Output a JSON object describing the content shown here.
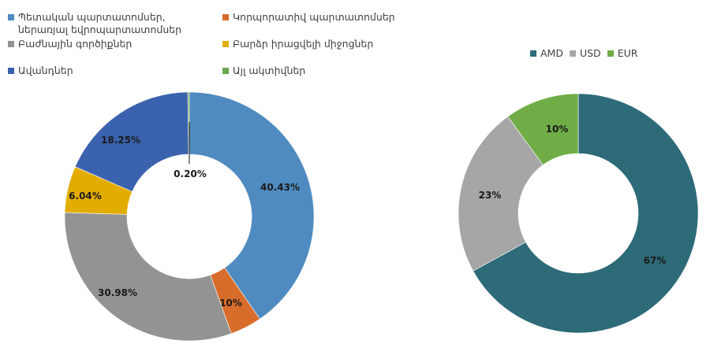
{
  "chart_data": [
    {
      "type": "pie",
      "subtype": "donut",
      "title": "",
      "categories": [
        "Պետական պարտատոմսեր, ներառյալ եվրոպարտատոմսեր",
        "Կորպորատիվ պարտատոմսեր",
        "Բաժնային գործիքներ",
        "Բարձր իրացվելի միջոցներ",
        "Ավանդներ",
        "Այլ ակտիվներ"
      ],
      "values": [
        40.43,
        4.1,
        30.98,
        6.04,
        18.25,
        0.2
      ],
      "labels": [
        "40.43%",
        "4.10%",
        "30.98%",
        "6.04%",
        "18.25%",
        "0.20%"
      ],
      "colors": [
        "#4f8bc0",
        "#d86c2a",
        "#939393",
        "#e3ad00",
        "#3a62ae",
        "#6aa84f"
      ],
      "legend_position": "top"
    },
    {
      "type": "pie",
      "subtype": "donut",
      "title": "",
      "categories": [
        "AMD",
        "USD",
        "EUR"
      ],
      "values": [
        67,
        23,
        10
      ],
      "labels": [
        "67%",
        "23%",
        "10%"
      ],
      "colors": [
        "#2d6b78",
        "#a6a6a6",
        "#70ad47"
      ],
      "legend_position": "top"
    }
  ],
  "legend_left": [
    {
      "label": "Պետական պարտատոմսեր,\nներառյալ եվրոպարտատոմսեր",
      "color": "#4f8bc0"
    },
    {
      "label": "Կորպորատիվ պարտատոմսեր",
      "color": "#d86c2a"
    },
    {
      "label": "Բաժնային գործիքներ",
      "color": "#939393"
    },
    {
      "label": "Բարձր իրացվելի միջոցներ",
      "color": "#e3ad00"
    },
    {
      "label": "Ավանդներ",
      "color": "#3a62ae"
    },
    {
      "label": "Այլ ակտիվներ",
      "color": "#6aa84f"
    }
  ],
  "legend_right": [
    {
      "label": "AMD",
      "color": "#2d6b78"
    },
    {
      "label": "USD",
      "color": "#a6a6a6"
    },
    {
      "label": "EUR",
      "color": "#70ad47"
    }
  ]
}
